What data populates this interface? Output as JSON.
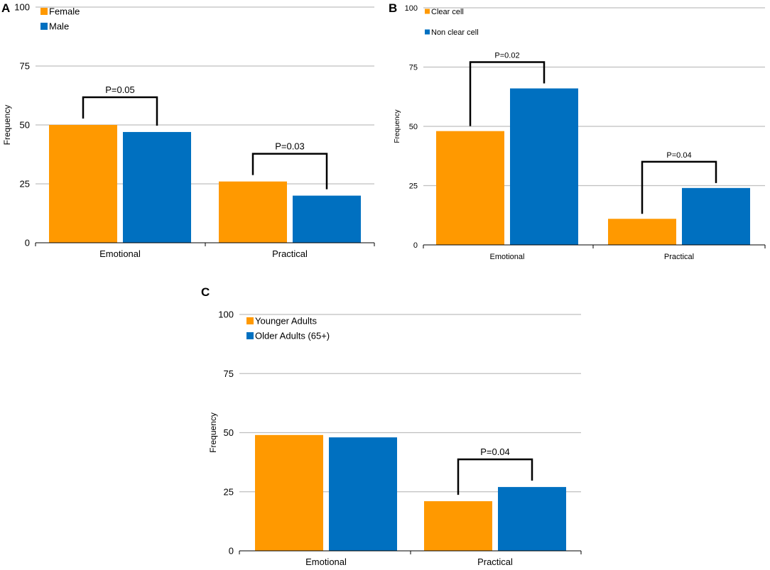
{
  "colors": {
    "orange": "#FF9900",
    "blue": "#0070C0",
    "grid": "#BFBFBF",
    "axis": "#000000"
  },
  "chart_data": [
    {
      "panel": "A",
      "type": "bar",
      "categories": [
        "Emotional",
        "Practical"
      ],
      "series": [
        {
          "name": "Female",
          "values": [
            50,
            26
          ]
        },
        {
          "name": "Male",
          "values": [
            47,
            20
          ]
        }
      ],
      "ylabel": "Frequency",
      "xlabel": "",
      "ylim": [
        0,
        100
      ],
      "yticks": [
        "0",
        "25",
        "50",
        "75",
        "100"
      ],
      "legend": "top-left",
      "grid": true,
      "annotations": [
        {
          "category": "Emotional",
          "label": "P=0.05"
        },
        {
          "category": "Practical",
          "label": "P=0.03"
        }
      ]
    },
    {
      "panel": "B",
      "type": "bar",
      "categories": [
        "Emotional",
        "Practical"
      ],
      "series": [
        {
          "name": "Clear cell",
          "values": [
            48,
            11
          ]
        },
        {
          "name": "Non clear cell",
          "values": [
            66,
            24
          ]
        }
      ],
      "ylabel": "Frequency",
      "xlabel": "",
      "ylim": [
        0,
        100
      ],
      "yticks": [
        "0",
        "25",
        "50",
        "75",
        "100"
      ],
      "legend": "top-left",
      "grid": true,
      "annotations": [
        {
          "category": "Emotional",
          "label": "P=0.02"
        },
        {
          "category": "Practical",
          "label": "P=0.04"
        }
      ]
    },
    {
      "panel": "C",
      "type": "bar",
      "categories": [
        "Emotional",
        "Practical"
      ],
      "series": [
        {
          "name": "Younger Adults",
          "values": [
            49,
            21
          ]
        },
        {
          "name": "Older Adults (65+)",
          "values": [
            48,
            27
          ]
        }
      ],
      "ylabel": "Frequency",
      "xlabel": "",
      "ylim": [
        0,
        100
      ],
      "yticks": [
        "0",
        "25",
        "50",
        "75",
        "100"
      ],
      "legend": "top-left",
      "grid": true,
      "annotations": [
        {
          "category": "Practical",
          "label": "P=0.04"
        }
      ]
    }
  ]
}
